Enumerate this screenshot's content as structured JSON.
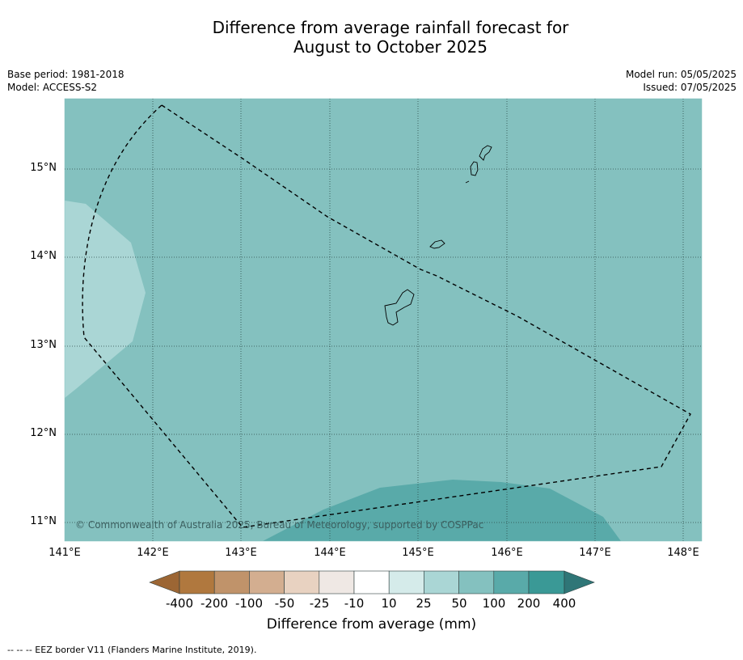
{
  "title": {
    "line1": "Difference from average rainfall forecast for",
    "line2": "August to October 2025"
  },
  "meta": {
    "base_period": "Base period: 1981-2018",
    "model": "Model: ACCESS-S2",
    "model_run": "Model run: 05/05/2025",
    "issued": "Issued: 07/05/2025"
  },
  "map": {
    "lat_labels": [
      "15°N",
      "14°N",
      "13°N",
      "12°N",
      "11°N"
    ],
    "lon_labels": [
      "141°E",
      "142°E",
      "143°E",
      "144°E",
      "145°E",
      "146°E",
      "147°E",
      "148°E"
    ],
    "copyright": "© Commonwealth of Australia 2025, Bureau of Meteorology, supported by COSPPac",
    "colors": {
      "cat_50_100": "#84c1bf",
      "cat_25_50": "#aad6d5",
      "cat_100_200": "#59aaa9"
    }
  },
  "colorbar": {
    "labels": [
      "-400",
      "-200",
      "-100",
      "-50",
      "-25",
      "-10",
      "10",
      "25",
      "50",
      "100",
      "200",
      "400"
    ],
    "colors": [
      "#9c6634",
      "#b0783e",
      "#c0936a",
      "#d3ae90",
      "#e8d2c1",
      "#efe8e4",
      "#ffffff",
      "#d5ebea",
      "#aad6d5",
      "#84c1bf",
      "#59aaa9",
      "#3a9996",
      "#2f7677"
    ],
    "title": "Difference from average (mm)"
  },
  "footer": "--  --  -- EEZ border V11 (Flanders Marine Institute, 2019)."
}
